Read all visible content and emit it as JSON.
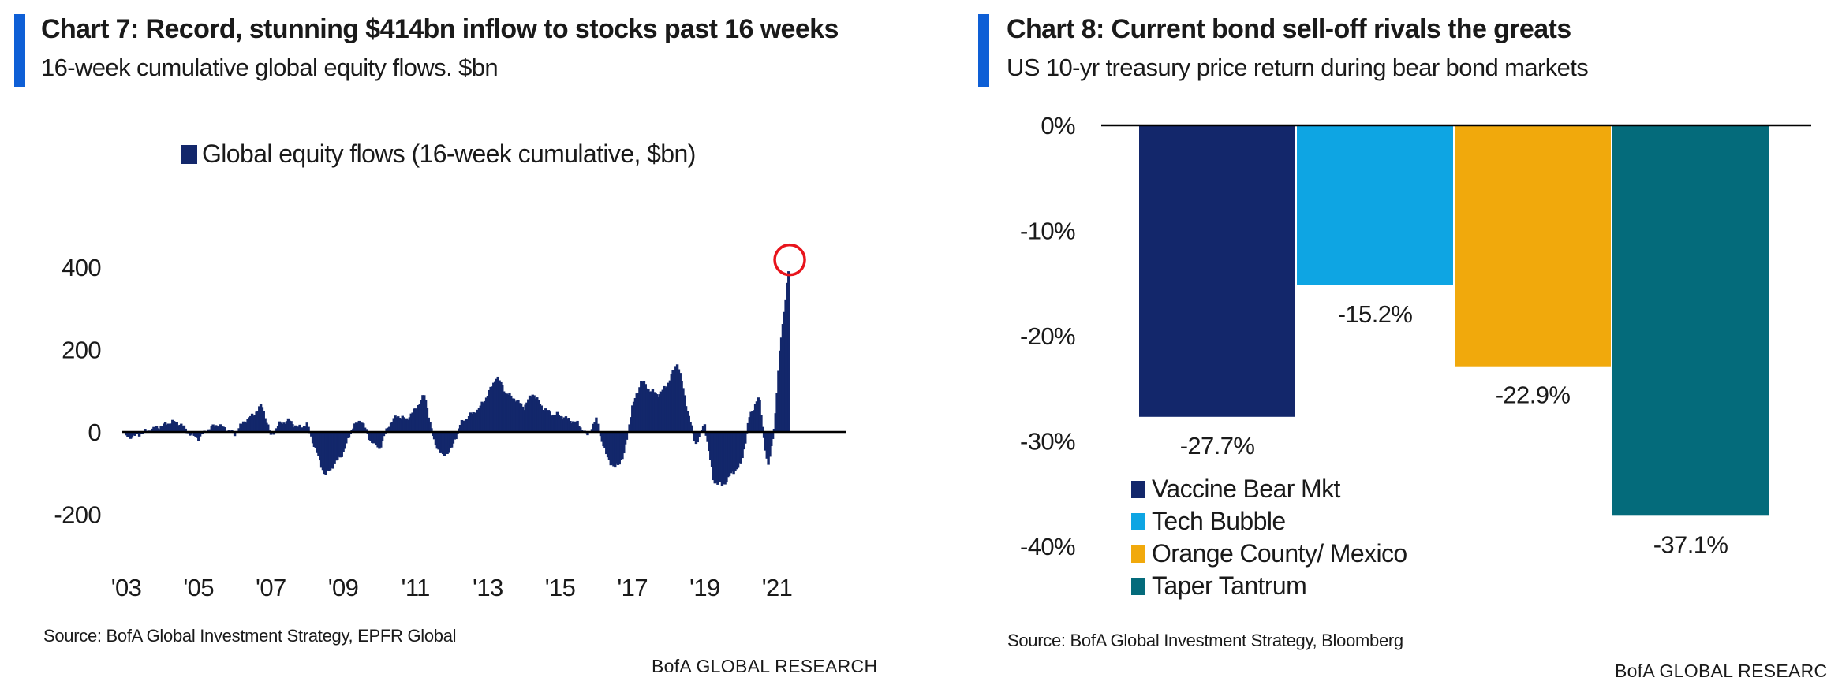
{
  "charts": {
    "left": {
      "title": "Chart 7: Record, stunning $414bn inflow to stocks past 16 weeks",
      "subtitle": "16-week cumulative global equity flows. $bn",
      "source": "Source:  BofA Global Investment Strategy, EPFR Global",
      "brand": "BofA GLOBAL RESEARCH"
    },
    "right": {
      "title": "Chart 8: Current bond sell-off rivals the greats",
      "subtitle": "US 10-yr treasury price return during bear bond markets",
      "source": "Source:  BofA Global Investment Strategy, Bloomberg",
      "brand": "BofA GLOBAL RESEARCH"
    }
  },
  "chart_data": [
    {
      "type": "bar",
      "title": "Chart 7: Record, stunning $414bn inflow to stocks past 16 weeks",
      "subtitle": "16-week cumulative global equity flows. $bn",
      "xlabel": "",
      "ylabel": "",
      "ylim": [
        -200,
        450
      ],
      "yticks": [
        -200,
        0,
        200,
        400
      ],
      "ytick_labels": [
        "-200",
        "0",
        "200",
        "400"
      ],
      "xlim": [
        2003,
        2023
      ],
      "xticks": [
        2003,
        2005,
        2007,
        2009,
        2011,
        2013,
        2015,
        2017,
        2019,
        2021
      ],
      "xtick_labels": [
        "'03",
        "'05",
        "'07",
        "'09",
        "'11",
        "'13",
        "'15",
        "'17",
        "'19",
        "'21"
      ],
      "legend": "top-center",
      "grid": false,
      "annotation": "red circle highlighting the latest peak of 414",
      "series": [
        {
          "name": "Global equity flows (16-week cumulative, $bn)",
          "color": "#13276b",
          "points": [
            [
              2003.0,
              -12
            ],
            [
              2003.25,
              -10
            ],
            [
              2003.5,
              0
            ],
            [
              2003.75,
              8
            ],
            [
              2004.0,
              15
            ],
            [
              2004.25,
              25
            ],
            [
              2004.5,
              20
            ],
            [
              2004.75,
              -5
            ],
            [
              2005.0,
              -15
            ],
            [
              2005.25,
              5
            ],
            [
              2005.5,
              18
            ],
            [
              2005.75,
              8
            ],
            [
              2006.0,
              -6
            ],
            [
              2006.25,
              25
            ],
            [
              2006.5,
              40
            ],
            [
              2006.75,
              65
            ],
            [
              2007.0,
              -10
            ],
            [
              2007.25,
              20
            ],
            [
              2007.5,
              28
            ],
            [
              2007.75,
              10
            ],
            [
              2008.0,
              18
            ],
            [
              2008.25,
              -45
            ],
            [
              2008.5,
              -105
            ],
            [
              2008.75,
              -80
            ],
            [
              2009.0,
              -50
            ],
            [
              2009.25,
              10
            ],
            [
              2009.5,
              30
            ],
            [
              2009.75,
              -20
            ],
            [
              2010.0,
              -40
            ],
            [
              2010.25,
              15
            ],
            [
              2010.5,
              40
            ],
            [
              2010.75,
              30
            ],
            [
              2011.0,
              55
            ],
            [
              2011.25,
              90
            ],
            [
              2011.5,
              -20
            ],
            [
              2011.75,
              -60
            ],
            [
              2012.0,
              -40
            ],
            [
              2012.25,
              20
            ],
            [
              2012.5,
              40
            ],
            [
              2012.75,
              55
            ],
            [
              2013.0,
              90
            ],
            [
              2013.25,
              135
            ],
            [
              2013.5,
              95
            ],
            [
              2013.75,
              80
            ],
            [
              2014.0,
              60
            ],
            [
              2014.25,
              95
            ],
            [
              2014.5,
              60
            ],
            [
              2014.75,
              45
            ],
            [
              2015.0,
              40
            ],
            [
              2015.25,
              30
            ],
            [
              2015.5,
              20
            ],
            [
              2015.75,
              -10
            ],
            [
              2016.0,
              30
            ],
            [
              2016.25,
              -50
            ],
            [
              2016.5,
              -90
            ],
            [
              2016.75,
              -60
            ],
            [
              2017.0,
              60
            ],
            [
              2017.25,
              125
            ],
            [
              2017.5,
              100
            ],
            [
              2017.75,
              90
            ],
            [
              2018.0,
              120
            ],
            [
              2018.25,
              170
            ],
            [
              2018.5,
              60
            ],
            [
              2018.75,
              -30
            ],
            [
              2019.0,
              20
            ],
            [
              2019.25,
              -120
            ],
            [
              2019.5,
              -130
            ],
            [
              2019.75,
              -100
            ],
            [
              2020.0,
              -80
            ],
            [
              2020.25,
              40
            ],
            [
              2020.5,
              85
            ],
            [
              2020.75,
              -90
            ],
            [
              2020.95,
              30
            ],
            [
              2021.1,
              220
            ],
            [
              2021.25,
              330
            ],
            [
              2021.35,
              414
            ]
          ]
        }
      ]
    },
    {
      "type": "bar",
      "title": "Chart 8: Current bond sell-off rivals the greats",
      "subtitle": "US 10-yr treasury price return during bear bond markets",
      "xlabel": "",
      "ylabel": "",
      "ylim": [
        -40,
        0
      ],
      "yticks": [
        0,
        -10,
        -20,
        -30,
        -40
      ],
      "ytick_labels": [
        "0%",
        "-10%",
        "-20%",
        "-30%",
        "-40%"
      ],
      "grid": false,
      "legend": "bottom-left",
      "categories": [
        "Vaccine Bear Mkt",
        "Tech Bubble",
        "Orange County/ Mexico",
        "Taper Tantrum"
      ],
      "values": [
        -27.7,
        -15.2,
        -22.9,
        -37.1
      ],
      "value_labels": [
        "-27.7%",
        "-15.2%",
        "-22.9%",
        "-37.1%"
      ],
      "colors": [
        "#13276b",
        "#0ea5e3",
        "#f1a90c",
        "#046b7b"
      ]
    }
  ]
}
